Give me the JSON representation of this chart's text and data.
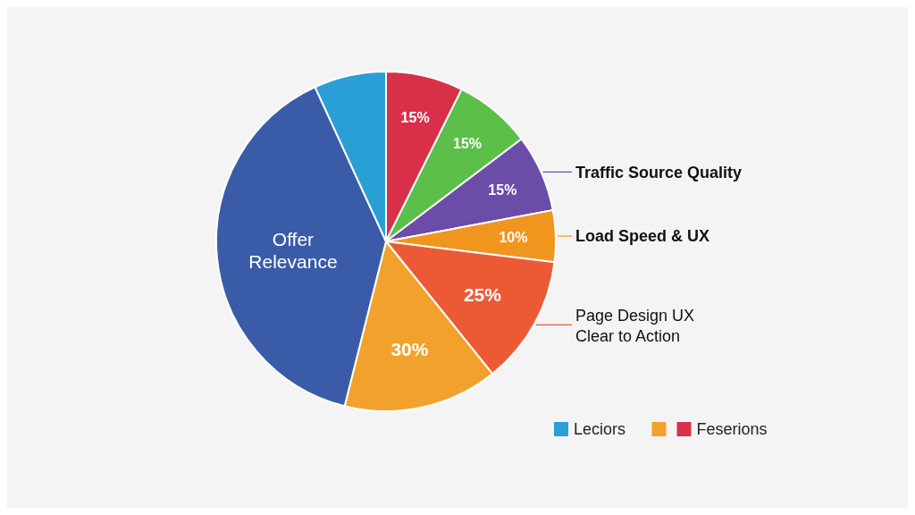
{
  "chart_data": {
    "type": "pie",
    "categories": [
      "Feserions",
      null,
      "Traffic Source Quality",
      "Load Speed & UX",
      "Page Design UX Clear to Action",
      null,
      "Offer Relevance",
      "Leciors"
    ],
    "values": [
      15,
      15,
      15,
      10,
      25,
      30,
      80,
      14
    ],
    "value_labels": [
      "15%",
      "15%",
      "15%",
      "10%",
      "25%",
      "30%",
      null,
      null
    ],
    "colors": [
      "#d9304a",
      "#5bbf4a",
      "#6b4ca8",
      "#f0961e",
      "#ec5a35",
      "#f2a22c",
      "#3a5ca8",
      "#2a9fd6"
    ],
    "legend": "bottom right"
  }
}
